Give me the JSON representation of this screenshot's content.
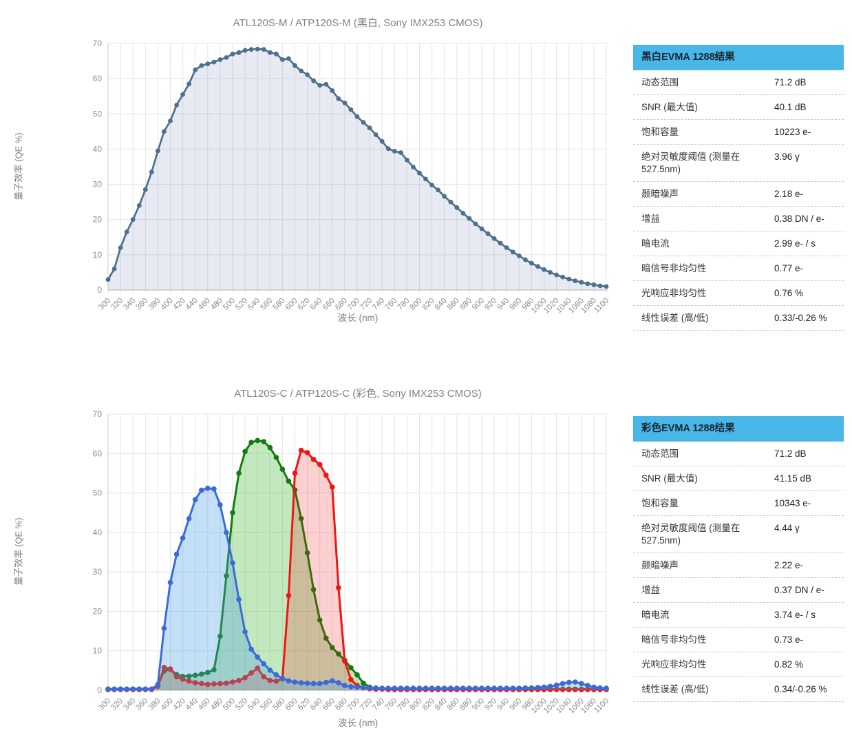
{
  "wavelengths_nm": [
    300,
    310,
    320,
    330,
    340,
    350,
    360,
    370,
    380,
    390,
    400,
    410,
    420,
    430,
    440,
    450,
    460,
    470,
    480,
    490,
    500,
    510,
    520,
    530,
    540,
    550,
    560,
    570,
    580,
    590,
    600,
    610,
    620,
    630,
    640,
    650,
    660,
    670,
    680,
    690,
    700,
    710,
    720,
    730,
    740,
    750,
    760,
    770,
    780,
    790,
    800,
    810,
    820,
    830,
    840,
    850,
    860,
    870,
    880,
    890,
    900,
    910,
    920,
    930,
    940,
    950,
    960,
    970,
    980,
    990,
    1000,
    1010,
    1020,
    1030,
    1040,
    1050,
    1060,
    1070,
    1080,
    1090,
    1100
  ],
  "chart_data": [
    {
      "type": "area",
      "title": "ATL120S-M / ATP120S-M (黑白, Sony IMX253 CMOS)",
      "xlabel": "波长 (nm)",
      "ylabel": "量子效率 (QE %)",
      "x": "wavelengths_nm",
      "x_min": 300,
      "x_max": 1100,
      "x_step": 10,
      "x_tick_step": 20,
      "ylim": [
        0,
        70
      ],
      "y_tick_step": 10,
      "grid": true,
      "series": [
        {
          "name": "mono-qe",
          "color": "#4e6f8e",
          "fill": "rgba(85,105,160,0.14)",
          "line_width": 2.7,
          "point_radius": 3.4,
          "values": [
            3,
            6,
            12,
            16.5,
            20,
            24,
            28.5,
            33.5,
            39.5,
            45,
            48,
            52.5,
            55.5,
            58.5,
            62.5,
            63.7,
            64.2,
            64.7,
            65.4,
            66,
            67,
            67.4,
            68,
            68.3,
            68.4,
            68.3,
            67.4,
            67,
            65.4,
            65.7,
            63.7,
            62.2,
            61.1,
            59.4,
            58.1,
            58.4,
            56.6,
            54.3,
            53.1,
            51.2,
            49.2,
            47.6,
            46,
            44.1,
            42.2,
            40.1,
            39.4,
            39,
            36.9,
            34.9,
            33.2,
            31.5,
            29.8,
            28.4,
            26.6,
            25,
            23.4,
            21.8,
            20.3,
            18.8,
            17.4,
            16,
            14.6,
            13.3,
            12,
            10.8,
            9.7,
            8.6,
            7.6,
            6.7,
            5.8,
            5,
            4.3,
            3.7,
            3.1,
            2.6,
            2.2,
            1.8,
            1.5,
            1.2,
            1
          ]
        }
      ]
    },
    {
      "type": "area",
      "title": "ATL120S-C / ATP120S-C (彩色, Sony IMX253 CMOS)",
      "xlabel": "波长 (nm)",
      "ylabel": "量子效率 (QE %)",
      "x": "wavelengths_nm",
      "x_min": 300,
      "x_max": 1100,
      "x_step": 10,
      "x_tick_step": 20,
      "ylim": [
        0,
        70
      ],
      "y_tick_step": 10,
      "grid": true,
      "series": [
        {
          "name": "green-channel",
          "color": "#117d11",
          "fill": "rgba(60,180,40,0.30)",
          "line_width": 3,
          "point_radius": 3.8,
          "values": [
            0.3,
            0.3,
            0.3,
            0.3,
            0.3,
            0.3,
            0.3,
            0.3,
            1.2,
            4.9,
            5.3,
            4,
            3.5,
            3.6,
            3.8,
            4.1,
            4.5,
            5.2,
            13.7,
            29,
            45,
            55,
            60.5,
            62.8,
            63.3,
            63,
            61.5,
            59,
            56,
            53,
            50.8,
            43.5,
            34.8,
            25.5,
            17.8,
            13.2,
            10.8,
            9.2,
            7.6,
            5.7,
            3.9,
            1.8,
            0.8,
            0.5,
            0.4,
            0.3,
            0.3,
            0.3,
            0.3,
            0.3,
            0.3,
            0.3,
            0.3,
            0.3,
            0.3,
            0.3,
            0.3,
            0.3,
            0.3,
            0.3,
            0.3,
            0.3,
            0.3,
            0.3,
            0.3,
            0.3,
            0.3,
            0.3,
            0.3,
            0.3,
            0.3,
            0.3,
            0.3,
            0.3,
            0.3,
            0.3,
            0.3,
            0.3,
            0.3,
            0.3,
            0.3
          ]
        },
        {
          "name": "red-channel",
          "color": "#ee1611",
          "fill": "rgba(238,22,18,0.20)",
          "line_width": 3,
          "point_radius": 3.8,
          "values": [
            0.2,
            0.2,
            0.2,
            0.2,
            0.2,
            0.2,
            0.2,
            0.2,
            1,
            5.8,
            5.4,
            3.4,
            2.8,
            2.3,
            1.9,
            1.7,
            1.5,
            1.6,
            1.7,
            1.8,
            2.1,
            2.5,
            3.2,
            4.4,
            5.6,
            3.4,
            2.5,
            2.3,
            2.9,
            24,
            55,
            60.8,
            60.2,
            58.5,
            57.2,
            54.5,
            51.5,
            26,
            7.4,
            2.7,
            1.2,
            0.6,
            0.4,
            0.3,
            0.3,
            0.2,
            0.2,
            0.2,
            0.2,
            0.2,
            0.2,
            0.2,
            0.2,
            0.2,
            0.2,
            0.2,
            0.2,
            0.2,
            0.2,
            0.2,
            0.2,
            0.2,
            0.2,
            0.2,
            0.2,
            0.2,
            0.2,
            0.2,
            0.2,
            0.2,
            0.2,
            0.2,
            0.2,
            0.2,
            0.2,
            0.2,
            0.2,
            0.2,
            0.2,
            0.2,
            0.2
          ]
        },
        {
          "name": "blue-channel",
          "color": "#3a6bd8",
          "fill": "rgba(72,160,228,0.32)",
          "line_width": 3,
          "point_radius": 3.8,
          "values": [
            0.3,
            0.3,
            0.3,
            0.3,
            0.3,
            0.3,
            0.3,
            0.3,
            1.5,
            15.7,
            27.3,
            34.5,
            38.6,
            43.5,
            48.3,
            50.7,
            51.2,
            51,
            47,
            40,
            32.3,
            23,
            14.8,
            10.4,
            8.4,
            6.7,
            5.1,
            3.9,
            3,
            2.4,
            2.1,
            1.9,
            1.8,
            1.7,
            1.7,
            2,
            2.4,
            1.9,
            1.2,
            0.9,
            0.8,
            0.7,
            0.6,
            0.6,
            0.5,
            0.5,
            0.5,
            0.5,
            0.5,
            0.5,
            0.5,
            0.5,
            0.5,
            0.5,
            0.5,
            0.5,
            0.5,
            0.5,
            0.5,
            0.5,
            0.5,
            0.5,
            0.5,
            0.5,
            0.5,
            0.5,
            0.5,
            0.6,
            0.6,
            0.7,
            0.8,
            1,
            1.3,
            1.7,
            2,
            2.1,
            1.7,
            1.2,
            0.8,
            0.6,
            0.5
          ]
        }
      ]
    }
  ],
  "tables": [
    {
      "header": "黑白EVMA 1288结果",
      "rows": [
        {
          "label": "动态范围",
          "value": "71.2 dB"
        },
        {
          "label": "SNR (最大值)",
          "value": "40.1 dB"
        },
        {
          "label": "饱和容量",
          "value": "10223 e-"
        },
        {
          "label": "绝对灵敏度阈值 (测量在 527.5nm)",
          "value": "3.96 γ"
        },
        {
          "label": "颞暗噪声",
          "value": "2.18 e-"
        },
        {
          "label": "增益",
          "value": "0.38 DN / e-"
        },
        {
          "label": "暗电流",
          "value": "2.99 e- / s"
        },
        {
          "label": "暗信号非均匀性",
          "value": "0.77 e-"
        },
        {
          "label": "光响应非均匀性",
          "value": "0.76 %"
        },
        {
          "label": "线性误差 (高/低)",
          "value": "0.33/-0.26 %"
        }
      ]
    },
    {
      "header": "彩色EVMA 1288结果",
      "rows": [
        {
          "label": "动态范围",
          "value": "71.2 dB"
        },
        {
          "label": "SNR (最大值)",
          "value": "41.15 dB"
        },
        {
          "label": "饱和容量",
          "value": "10343 e-"
        },
        {
          "label": "绝对灵敏度阈值 (测量在 527.5nm)",
          "value": "4.44 γ"
        },
        {
          "label": "颞暗噪声",
          "value": "2.22 e-"
        },
        {
          "label": "增益",
          "value": "0.37 DN / e-"
        },
        {
          "label": "暗电流",
          "value": "3.74 e- / s"
        },
        {
          "label": "暗信号非均匀性",
          "value": "0.73 e-"
        },
        {
          "label": "光响应非均匀性",
          "value": "0.82 %"
        },
        {
          "label": "线性误差 (高/低)",
          "value": "0.34/-0.26 %"
        }
      ]
    }
  ],
  "colors": {
    "table_header_bg": "#49b6e8",
    "grid_line": "#e5e5e5",
    "axis_line": "#b5b5b5",
    "tick_label": "#8b8b8b",
    "title_text": "#828282"
  }
}
